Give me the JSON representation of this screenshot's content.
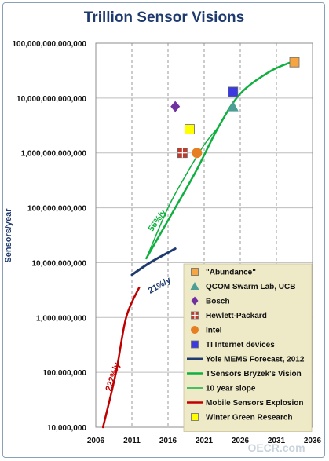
{
  "chart_data": {
    "type": "line",
    "title": "Trillion Sensor Visions",
    "ylabel": "Sensors/year",
    "xlabel": "",
    "y_scale": "log",
    "xlim": [
      2006,
      2036
    ],
    "ylim": [
      10000000,
      100000000000000
    ],
    "x_ticks": [
      "2006",
      "2011",
      "2016",
      "2021",
      "2026",
      "2031",
      "2036"
    ],
    "y_ticks": [
      "10,000,000",
      "100,000,000",
      "1,000,000,000",
      "10,000,000,000",
      "100,000,000,000",
      "1,000,000,000,000",
      "10,000,000,000,000",
      "100,000,000,000,000"
    ],
    "grid": "vertical dashed",
    "legend_position": "bottom-right",
    "series": [
      {
        "name": "\"Abundance\"",
        "kind": "marker",
        "marker": "square",
        "color": "#f7a541",
        "points": [
          [
            2033.5,
            45000000000000
          ]
        ]
      },
      {
        "name": "QCOM Swarm Lab, UCB",
        "kind": "marker",
        "marker": "triangle",
        "color": "#4d9e95",
        "points": [
          [
            2025,
            7000000000000
          ]
        ]
      },
      {
        "name": "Bosch",
        "kind": "marker",
        "marker": "diamond",
        "color": "#7030a0",
        "points": [
          [
            2017,
            7000000000000
          ]
        ]
      },
      {
        "name": "Hewlett-Packard",
        "kind": "marker",
        "marker": "square-cross",
        "color": "#c0392b",
        "points": [
          [
            2018,
            1000000000000
          ]
        ]
      },
      {
        "name": "Intel",
        "kind": "marker",
        "marker": "circle",
        "color": "#e67e22",
        "points": [
          [
            2020,
            1000000000000
          ]
        ]
      },
      {
        "name": "TI Internet devices",
        "kind": "marker",
        "marker": "square",
        "color": "#3a3ae0",
        "points": [
          [
            2025,
            13000000000000
          ]
        ]
      },
      {
        "name": "Yole MEMS Forecast, 2012",
        "kind": "line",
        "color": "#1f3a6e",
        "width": 3,
        "points": [
          [
            2011,
            6000000000
          ],
          [
            2013.5,
            10000000000
          ],
          [
            2017,
            18000000000
          ]
        ]
      },
      {
        "name": "TSensors Bryzek's Vision",
        "kind": "line",
        "color": "#10b040",
        "width": 2.5,
        "points": [
          [
            2013,
            12000000000
          ],
          [
            2017,
            100000000000
          ],
          [
            2020,
            500000000000
          ],
          [
            2023,
            3000000000000
          ],
          [
            2026,
            12000000000000
          ],
          [
            2030,
            30000000000000
          ],
          [
            2033,
            45000000000000
          ]
        ]
      },
      {
        "name": "10 year slope",
        "kind": "line",
        "color": "#10b040",
        "width": 1.5,
        "points": [
          [
            2013,
            12000000000
          ],
          [
            2016,
            100000000000
          ],
          [
            2018.5,
            400000000000
          ],
          [
            2021,
            1400000000000
          ],
          [
            2023,
            3000000000000
          ]
        ]
      },
      {
        "name": "Mobile Sensors Explosion",
        "kind": "line",
        "color": "#c00000",
        "width": 2.5,
        "points": [
          [
            2007,
            10000000
          ],
          [
            2008.8,
            100000000
          ],
          [
            2010.2,
            1000000000
          ],
          [
            2012,
            3500000000
          ]
        ]
      },
      {
        "name": "Winter Green Research",
        "kind": "marker",
        "marker": "square",
        "color": "#ffff00",
        "points": [
          [
            2019,
            2700000000000
          ]
        ]
      }
    ],
    "annotations": [
      {
        "text": "56%/y",
        "color": "#10b040"
      },
      {
        "text": "21%/y",
        "color": "#1f3a6e"
      },
      {
        "text": "222%/y",
        "color": "#c00000"
      }
    ]
  },
  "watermark": "OECR.com"
}
